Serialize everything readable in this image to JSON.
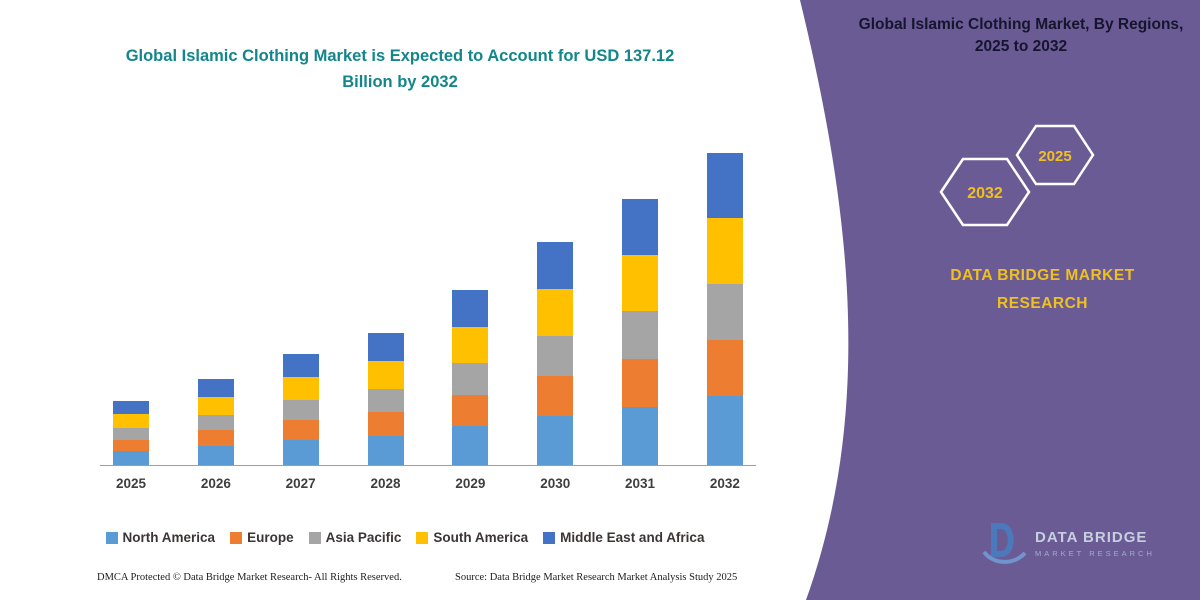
{
  "colors": {
    "chart_title": "#12868A",
    "panel_background": "#6B5B95",
    "panel_accent": "#F0C020",
    "axis": "#9e9e9e"
  },
  "chart_data": {
    "type": "bar",
    "stacked": true,
    "title": "Global Islamic Clothing Market is Expected to Account for USD 137.12 Billion by 2032",
    "unit": "USD Billion",
    "categories": [
      "2025",
      "2026",
      "2027",
      "2028",
      "2029",
      "2030",
      "2031",
      "2032"
    ],
    "series": [
      {
        "name": "North America",
        "color": "#5B9BD5",
        "values": [
          6.2,
          8.4,
          10.8,
          12.8,
          17.0,
          21.6,
          25.7,
          30.2
        ]
      },
      {
        "name": "Europe",
        "color": "#ED7D31",
        "values": [
          5.0,
          6.8,
          8.8,
          10.4,
          13.9,
          17.6,
          21.1,
          24.7
        ]
      },
      {
        "name": "Asia Pacific",
        "color": "#A5A5A5",
        "values": [
          5.0,
          6.8,
          8.8,
          10.4,
          13.9,
          17.6,
          21.1,
          24.7
        ]
      },
      {
        "name": "South America",
        "color": "#FFC000",
        "values": [
          6.0,
          8.0,
          10.3,
          12.2,
          16.1,
          20.6,
          24.6,
          28.8
        ]
      },
      {
        "name": "Middle East and Africa",
        "color": "#4472C4",
        "values": [
          5.8,
          8.0,
          10.3,
          12.2,
          16.1,
          20.6,
          24.5,
          28.72
        ]
      }
    ],
    "totals": [
      28.0,
      38.0,
      49.0,
      58.0,
      77.0,
      98.0,
      117.0,
      137.12
    ],
    "ylim": [
      0,
      140
    ],
    "grid": false,
    "legend_position": "bottom",
    "xlabel": "",
    "ylabel": ""
  },
  "right_panel": {
    "title": "Global Islamic Clothing Market, By Regions, 2025 to 2032",
    "hexagon_years": [
      "2032",
      "2025"
    ],
    "brand_text": "DATA BRIDGE MARKET RESEARCH"
  },
  "logo": {
    "name": "DATA BRIDGE",
    "tagline": "MARKET RESEARCH"
  },
  "footer": {
    "dmca": "DMCA Protected © Data Bridge Market Research-  All Rights Reserved.",
    "source": "Source: Data Bridge Market Research  Market Analysis Study 2025"
  }
}
